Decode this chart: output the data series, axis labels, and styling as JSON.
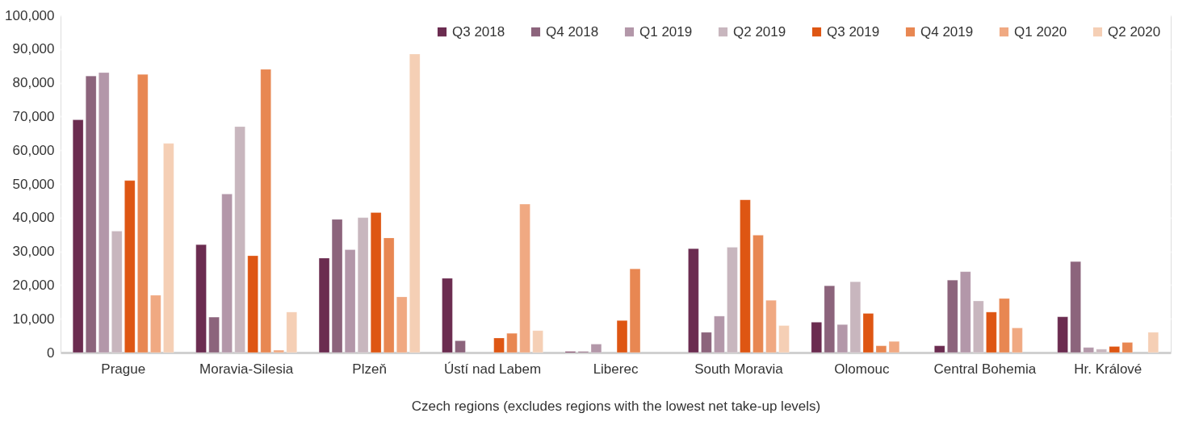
{
  "chart_data": {
    "type": "bar",
    "xlabel": "Czech regions (excludes regions with the lowest net take-up levels)",
    "categories": [
      "Prague",
      "Moravia-Silesia",
      "Plzeň",
      "Ústí nad Labem",
      "Liberec",
      "South Moravia",
      "Olomouc",
      "Central Bohemia",
      "Hr. Králové"
    ],
    "series": [
      {
        "name": "Q3 2018",
        "color": "#6b2c50",
        "values": [
          69000,
          32000,
          28000,
          22000,
          300,
          30800,
          9000,
          2000,
          10600
        ]
      },
      {
        "name": "Q4 2018",
        "color": "#8c647c",
        "values": [
          82000,
          10500,
          39500,
          3500,
          300,
          6000,
          19800,
          21500,
          27000
        ]
      },
      {
        "name": "Q1 2019",
        "color": "#b397a9",
        "values": [
          83000,
          47000,
          30500,
          null,
          2500,
          10800,
          8300,
          24000,
          1500
        ]
      },
      {
        "name": "Q2 2019",
        "color": "#c8b6be",
        "values": [
          36000,
          67000,
          40000,
          null,
          null,
          31200,
          21000,
          15300,
          1000
        ]
      },
      {
        "name": "Q3 2019",
        "color": "#de5613",
        "values": [
          51000,
          28700,
          41500,
          4300,
          9500,
          45300,
          11600,
          12000,
          1800
        ]
      },
      {
        "name": "Q4 2019",
        "color": "#e88752",
        "values": [
          82500,
          84000,
          34000,
          5700,
          24800,
          34800,
          2000,
          16000,
          3000
        ]
      },
      {
        "name": "Q1 2020",
        "color": "#f0a982",
        "values": [
          17000,
          700,
          16500,
          44000,
          null,
          15500,
          3300,
          7300,
          null
        ]
      },
      {
        "name": "Q2 2020",
        "color": "#f5cfb5",
        "values": [
          62000,
          12000,
          88500,
          6500,
          null,
          8000,
          null,
          null,
          6000
        ]
      }
    ],
    "ylim": [
      0,
      100000
    ],
    "yticks": [
      {
        "value": 0,
        "label": "0"
      },
      {
        "value": 10000,
        "label": "10,000"
      },
      {
        "value": 20000,
        "label": "20,000"
      },
      {
        "value": 30000,
        "label": "30,000"
      },
      {
        "value": 40000,
        "label": "40,000"
      },
      {
        "value": 50000,
        "label": "50,000"
      },
      {
        "value": 60000,
        "label": "60,000"
      },
      {
        "value": 70000,
        "label": "70,000"
      },
      {
        "value": 80000,
        "label": "80,000"
      },
      {
        "value": 90000,
        "label": "90,000"
      },
      {
        "value": 100000,
        "label": "100,000"
      }
    ],
    "grid": "y",
    "legend": "top right"
  }
}
